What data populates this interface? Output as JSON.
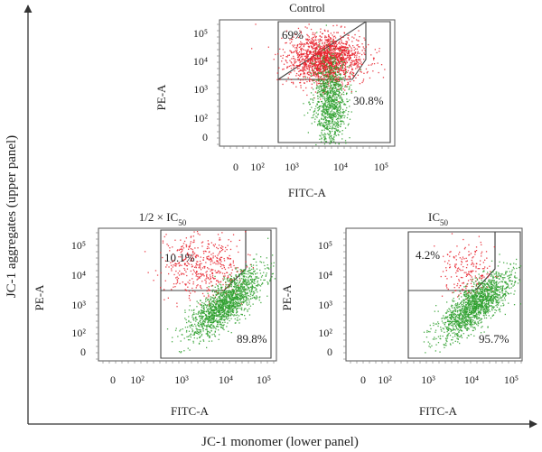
{
  "figure": {
    "y_axis_label": "JC-1 aggregates (upper panel)",
    "x_axis_label": "JC-1 monomer (lower panel)"
  },
  "chart_data": [
    {
      "type": "scatter",
      "title": "Control",
      "xlabel": "FITC-A",
      "ylabel": "PE-A",
      "x_ticks": [
        "0",
        "10²",
        "10³",
        "10⁴",
        "10⁵"
      ],
      "y_ticks": [
        "0",
        "10²",
        "10³",
        "10⁴",
        "10⁵"
      ],
      "xlim": [
        0,
        100000
      ],
      "ylim": [
        0,
        100000
      ],
      "scale": "biexponential",
      "gates": [
        {
          "label": "69%",
          "value_percent": 69,
          "region": "upper",
          "color": "#e8202a"
        },
        {
          "label": "30.8%",
          "value_percent": 30.8,
          "region": "lower",
          "color": "#2ea02e"
        }
      ],
      "clusters": [
        {
          "color": "#e8202a",
          "x_center": 5000,
          "y_center": 12000,
          "spread": "wide"
        },
        {
          "color": "#2ea02e",
          "x_center": 6000,
          "y_center": 400,
          "spread": "vertical"
        }
      ]
    },
    {
      "type": "scatter",
      "title": "1/2 × IC",
      "title_sub": "50",
      "xlabel": "FITC-A",
      "ylabel": "PE-A",
      "x_ticks": [
        "0",
        "10²",
        "10³",
        "10⁴",
        "10⁵"
      ],
      "y_ticks": [
        "0",
        "10²",
        "10³",
        "10⁴",
        "10⁵"
      ],
      "xlim": [
        0,
        100000
      ],
      "ylim": [
        0,
        100000
      ],
      "scale": "biexponential",
      "gates": [
        {
          "label": "10.1%",
          "value_percent": 10.1,
          "region": "upper",
          "color": "#e8202a"
        },
        {
          "label": "89.8%",
          "value_percent": 89.8,
          "region": "lower",
          "color": "#2ea02e"
        }
      ],
      "clusters": [
        {
          "color": "#e8202a",
          "x_center": 3000,
          "y_center": 20000,
          "spread": "wide"
        },
        {
          "color": "#2ea02e",
          "x_center": 10000,
          "y_center": 1200,
          "spread": "diagonal"
        }
      ]
    },
    {
      "type": "scatter",
      "title": "IC",
      "title_sub": "50",
      "xlabel": "FITC-A",
      "ylabel": "PE-A",
      "x_ticks": [
        "0",
        "10²",
        "10³",
        "10⁴",
        "10⁵"
      ],
      "y_ticks": [
        "0",
        "10²",
        "10³",
        "10⁴",
        "10⁵"
      ],
      "xlim": [
        0,
        100000
      ],
      "ylim": [
        0,
        100000
      ],
      "scale": "biexponential",
      "gates": [
        {
          "label": "4.2%",
          "value_percent": 4.2,
          "region": "upper",
          "color": "#e8202a"
        },
        {
          "label": "95.7%",
          "value_percent": 95.7,
          "region": "lower",
          "color": "#2ea02e"
        }
      ],
      "clusters": [
        {
          "color": "#e8202a",
          "x_center": 8000,
          "y_center": 15000,
          "spread": "sparse"
        },
        {
          "color": "#2ea02e",
          "x_center": 12000,
          "y_center": 1000,
          "spread": "diagonal"
        }
      ]
    }
  ]
}
